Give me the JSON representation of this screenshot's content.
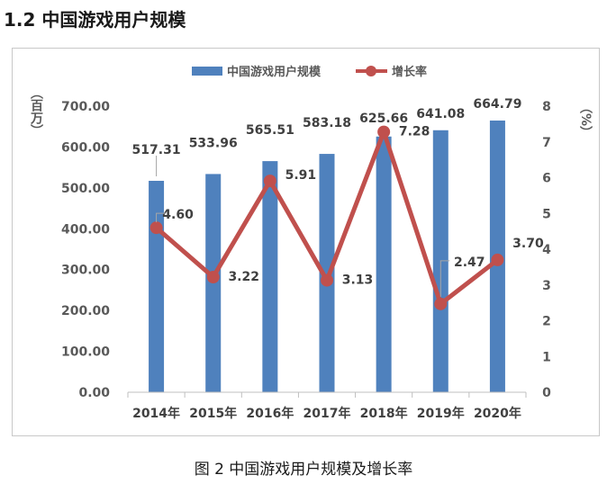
{
  "page": {
    "section_title": "1.2 中国游戏用户规模",
    "caption": "图 2  中国游戏用户规模及增长率"
  },
  "chart_data": {
    "type": "bar",
    "categories": [
      "2014年",
      "2015年",
      "2016年",
      "2017年",
      "2018年",
      "2019年",
      "2020年"
    ],
    "series": [
      {
        "name": "中国游戏用户规模",
        "type": "bar",
        "axis": "left",
        "values": [
          517.31,
          533.96,
          565.51,
          583.18,
          625.66,
          641.08,
          664.79
        ],
        "labels": [
          "517.31",
          "533.96",
          "565.51",
          "583.18",
          "625.66",
          "641.08",
          "664.79"
        ],
        "color": "#4f81bd"
      },
      {
        "name": "增长率",
        "type": "line",
        "axis": "right",
        "values": [
          4.6,
          3.22,
          5.91,
          3.13,
          7.28,
          2.47,
          3.7
        ],
        "labels": [
          "4.60",
          "3.22",
          "5.91",
          "3.13",
          "7.28",
          "2.47",
          "3.70"
        ],
        "color": "#c0504d"
      }
    ],
    "left_axis": {
      "label": "（百万）",
      "min": 0,
      "max": 700,
      "step": 100,
      "ticks": [
        "0.00",
        "100.00",
        "200.00",
        "300.00",
        "400.00",
        "500.00",
        "600.00",
        "700.00"
      ]
    },
    "right_axis": {
      "label": "（%）",
      "min": 0,
      "max": 8,
      "step": 1,
      "ticks": [
        "0",
        "1",
        "2",
        "3",
        "4",
        "5",
        "6",
        "7",
        "8"
      ]
    },
    "legend_position": "top",
    "grid": false
  }
}
